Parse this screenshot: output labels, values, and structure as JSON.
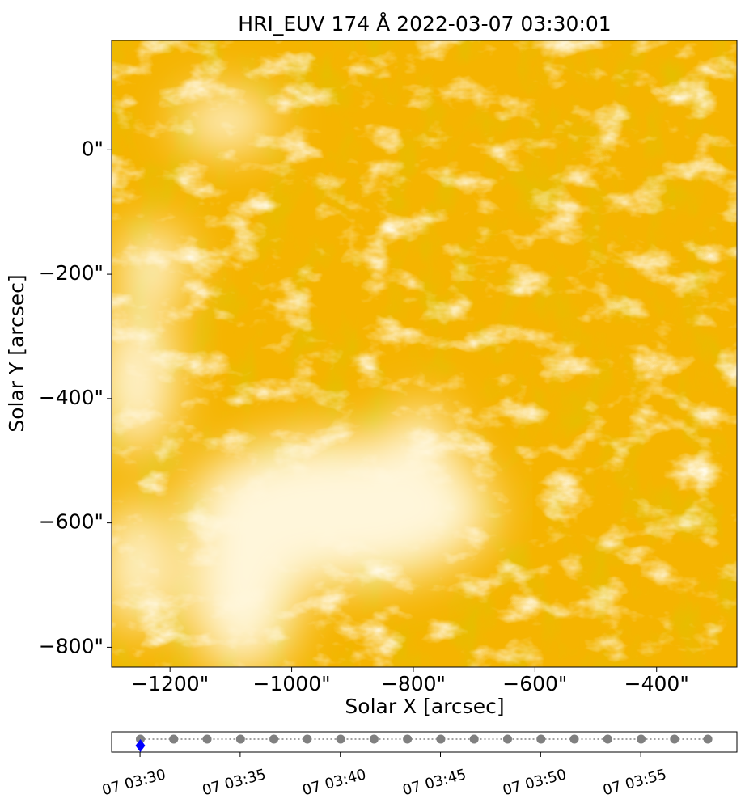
{
  "chart_data": [
    {
      "type": "image",
      "title": "HRI_EUV 174 Å 2022-03-07 03:30:01",
      "xlabel": "Solar X [arcsec]",
      "ylabel": "Solar Y [arcsec]",
      "xlim": [
        -1296,
        -268
      ],
      "ylim": [
        -832,
        176
      ],
      "xticks": [
        {
          "value": -1200,
          "label": "−1200\""
        },
        {
          "value": -1000,
          "label": "−1000\""
        },
        {
          "value": -800,
          "label": "−800\""
        },
        {
          "value": -600,
          "label": "−600\""
        },
        {
          "value": -400,
          "label": "−400\""
        }
      ],
      "yticks": [
        {
          "value": 0,
          "label": "0\""
        },
        {
          "value": -200,
          "label": "−200\""
        },
        {
          "value": -400,
          "label": "−400\""
        },
        {
          "value": -600,
          "label": "−600\""
        },
        {
          "value": -800,
          "label": "−800\""
        }
      ],
      "color": "#f5b400"
    },
    {
      "type": "timeline",
      "x": [
        "2022-03-07 03:30:01",
        "2022-03-07 03:31:41",
        "2022-03-07 03:33:21",
        "2022-03-07 03:35:01",
        "2022-03-07 03:36:41",
        "2022-03-07 03:38:21",
        "2022-03-07 03:40:01",
        "2022-03-07 03:41:41",
        "2022-03-07 03:43:21",
        "2022-03-07 03:45:01",
        "2022-03-07 03:46:41",
        "2022-03-07 03:48:21",
        "2022-03-07 03:50:01",
        "2022-03-07 03:51:41",
        "2022-03-07 03:53:21",
        "2022-03-07 03:55:01",
        "2022-03-07 03:56:41",
        "2022-03-07 03:58:21"
      ],
      "color": "#808080",
      "highlight": {
        "x": "2022-03-07 03:30:01",
        "color": "#0000ff"
      },
      "xlim": [
        "2022-03-07 03:28:35",
        "2022-03-07 03:59:48"
      ],
      "xticks": [
        {
          "value": "2022-03-07 03:30:00",
          "label": "07 03:30"
        },
        {
          "value": "2022-03-07 03:35:00",
          "label": "07 03:35"
        },
        {
          "value": "2022-03-07 03:40:00",
          "label": "07 03:40"
        },
        {
          "value": "2022-03-07 03:45:00",
          "label": "07 03:45"
        },
        {
          "value": "2022-03-07 03:50:00",
          "label": "07 03:50"
        },
        {
          "value": "2022-03-07 03:55:00",
          "label": "07 03:55"
        }
      ]
    }
  ]
}
